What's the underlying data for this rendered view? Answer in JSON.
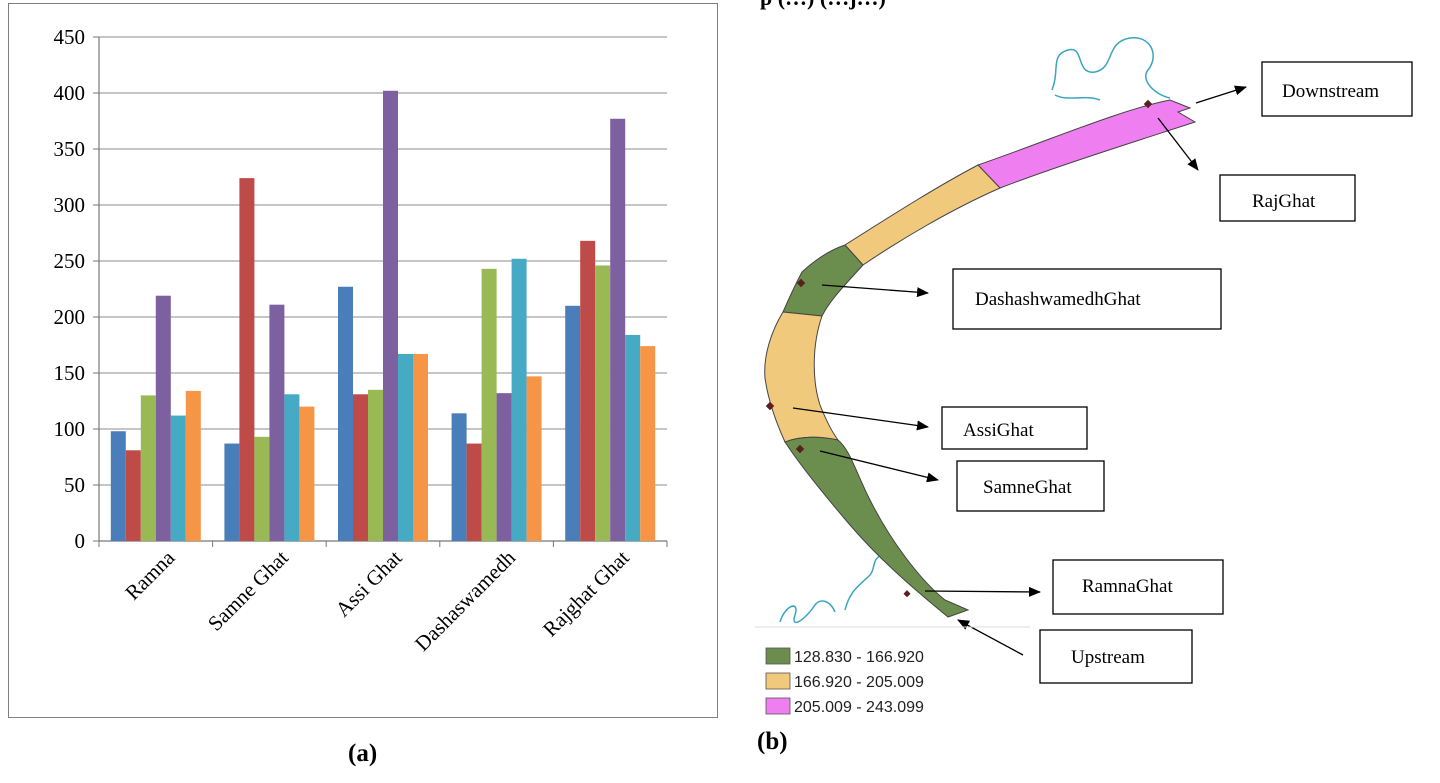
{
  "partial_heading": "p (…) (…j…)",
  "chart_data": {
    "type": "bar",
    "categories": [
      "Ramna",
      "Samne Ghat",
      "Assi Ghat",
      "Dashaswamedh",
      "Rajghat Ghat"
    ],
    "series": [
      {
        "color": "#4a7ebb",
        "values": [
          98,
          87,
          227,
          114,
          210
        ]
      },
      {
        "color": "#be4b48",
        "values": [
          81,
          324,
          131,
          87,
          268
        ]
      },
      {
        "color": "#98b954",
        "values": [
          130,
          93,
          135,
          243,
          246
        ]
      },
      {
        "color": "#7d60a0",
        "values": [
          219,
          211,
          402,
          132,
          377
        ]
      },
      {
        "color": "#46aac5",
        "values": [
          112,
          131,
          167,
          252,
          184
        ]
      },
      {
        "color": "#f69545",
        "values": [
          134,
          120,
          167,
          147,
          174
        ]
      }
    ],
    "ylim": [
      0,
      450
    ],
    "yticks": [
      0,
      50,
      100,
      150,
      200,
      250,
      300,
      350,
      400,
      450
    ],
    "grid": true,
    "legend": "none"
  },
  "captions": {
    "a": "(a)",
    "b": "(b)"
  },
  "map": {
    "labels": {
      "downstream": "Downstream",
      "rajghat": "RajGhat",
      "dashashwamedh": "DashashwamedhGhat",
      "assi": "AssiGhat",
      "samne": "SamneGhat",
      "ramna": "RamnaGhat",
      "upstream": "Upstream"
    },
    "legend": [
      {
        "label": "128.830 - 166.920",
        "color": "#6b8e4e"
      },
      {
        "label": "166.920 - 205.009",
        "color": "#f0c97c"
      },
      {
        "label": "205.009 - 243.099",
        "color": "#ef7ff0"
      }
    ],
    "water_color": "#3aa5c0"
  }
}
